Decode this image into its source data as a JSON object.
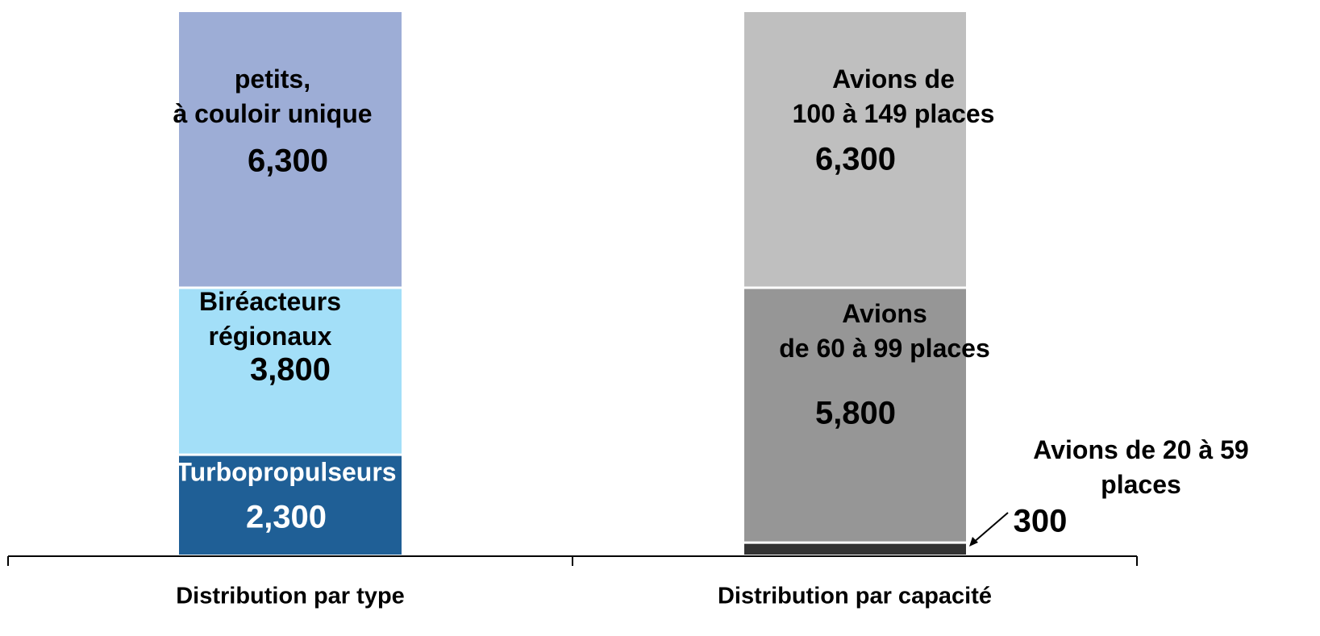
{
  "chart_data": {
    "type": "bar",
    "stacked": true,
    "categories": [
      "Distribution par type",
      "Distribution par capacité"
    ],
    "series": [
      {
        "name": "Turbopropulseurs",
        "color": "#1f5f96",
        "values": [
          2300,
          null
        ],
        "value_labels": [
          "2,300",
          null
        ]
      },
      {
        "name": "Biréacteurs\nrégionaux",
        "color": "#a3dff8",
        "values": [
          3800,
          null
        ],
        "value_labels": [
          "3,800",
          null
        ]
      },
      {
        "name": "petits,\nà couloir unique",
        "color": "#9dadd6",
        "values": [
          6300,
          null
        ],
        "value_labels": [
          "6,300",
          null
        ]
      },
      {
        "name": "Avions de 20 à 59\nplaces",
        "color": "#333333",
        "values": [
          null,
          300
        ],
        "value_labels": [
          null,
          "300"
        ]
      },
      {
        "name": "Avions\nde 60 à 99 places",
        "color": "#969696",
        "values": [
          null,
          5800
        ],
        "value_labels": [
          null,
          "5,800"
        ]
      },
      {
        "name": "Avions de\n100 à 149 places",
        "color": "#bfbfbf",
        "values": [
          null,
          6300
        ],
        "value_labels": [
          null,
          "6,300"
        ]
      }
    ]
  }
}
